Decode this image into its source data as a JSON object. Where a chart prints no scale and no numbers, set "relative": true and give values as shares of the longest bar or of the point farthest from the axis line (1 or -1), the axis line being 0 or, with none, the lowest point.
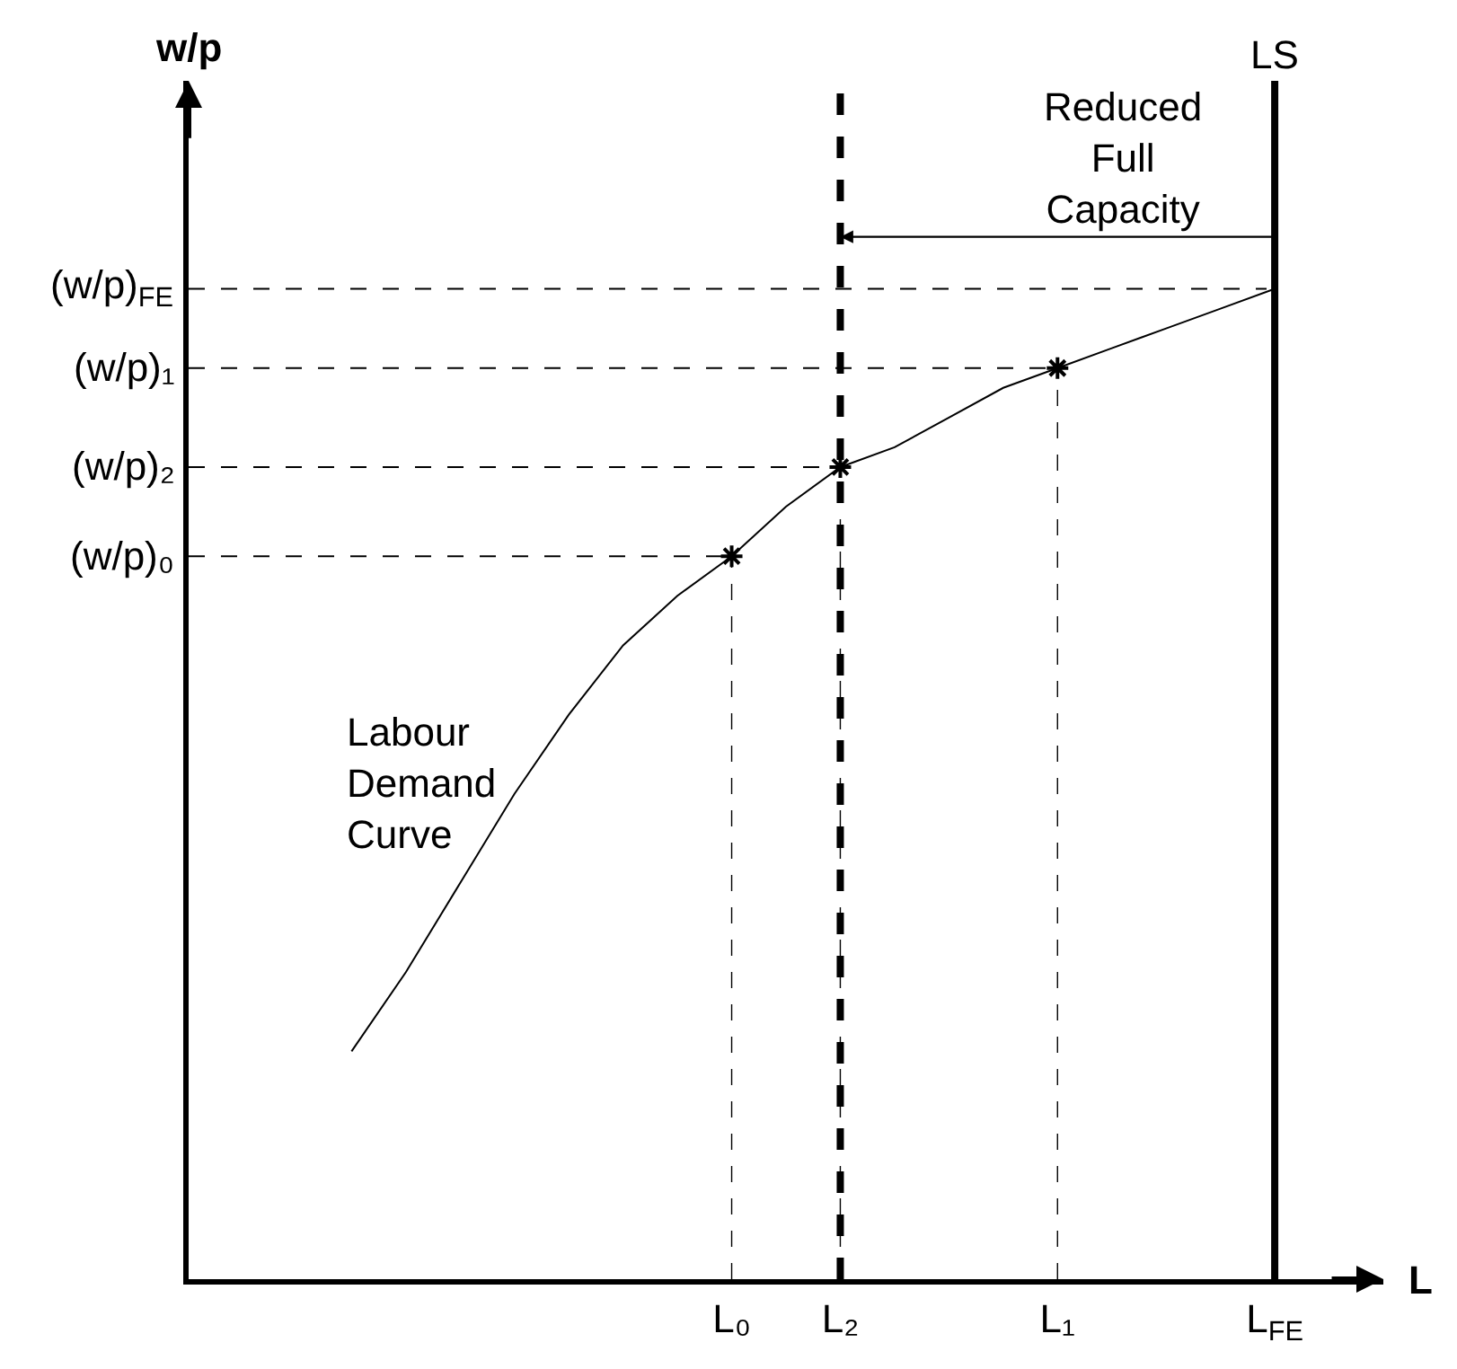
{
  "chart_data": {
    "type": "line",
    "relative": true,
    "xlabel": "L",
    "categories": [
      null,
      null,
      null,
      null,
      null,
      null,
      null,
      null,
      null,
      null,
      "L₀",
      null,
      "L₂",
      null,
      null,
      null,
      "L₁",
      null,
      null,
      null,
      "L$_{FE}$",
      null,
      null
    ],
    "series": [
      {
        "name": "Labour Demand Curve",
        "color": "#000000",
        "values": [
          null,
          null,
          null,
          0.23,
          0.31,
          0.4,
          0.49,
          0.57,
          0.64,
          0.69,
          0.73,
          0.78,
          0.82,
          0.84,
          0.87,
          0.9,
          0.92,
          0.94,
          0.96,
          0.98,
          1,
          null,
          null
        ]
      },
      {
        "type": "scatter",
        "color": "#000000",
        "marker": "cross",
        "values": [
          null,
          null,
          null,
          null,
          null,
          null,
          null,
          null,
          null,
          null,
          0.73,
          null,
          0.82,
          null,
          null,
          null,
          0.92,
          null,
          null,
          null,
          null,
          null,
          null
        ]
      }
    ],
    "ref_lines": [
      {
        "axis": "x",
        "value": "L$_{FE}$",
        "label": "LS",
        "color": "#000000",
        "line_style": "solid"
      },
      {
        "axis": "x",
        "value": "L₂",
        "color": "#000000",
        "line_style": "dashed"
      },
      {
        "axis": "y",
        "value": 0.73,
        "label": "(w/p)₀",
        "color": "#000000",
        "line_style": "dashed"
      },
      {
        "axis": "y",
        "value": 0.82,
        "label": "(w/p)₂",
        "color": "#000000",
        "line_style": "dashed"
      },
      {
        "axis": "y",
        "value": 0.92,
        "label": "(w/p)₁",
        "color": "#000000",
        "line_style": "dashed"
      },
      {
        "axis": "y",
        "value": 1,
        "label": "(w/p)$_{FE}$",
        "color": "#000000",
        "line_style": "dashed"
      }
    ],
    "annotations": [
      "w/p",
      "Reduced\nFull\nCapacity"
    ],
    "grid": "x",
    "legend": false
  }
}
